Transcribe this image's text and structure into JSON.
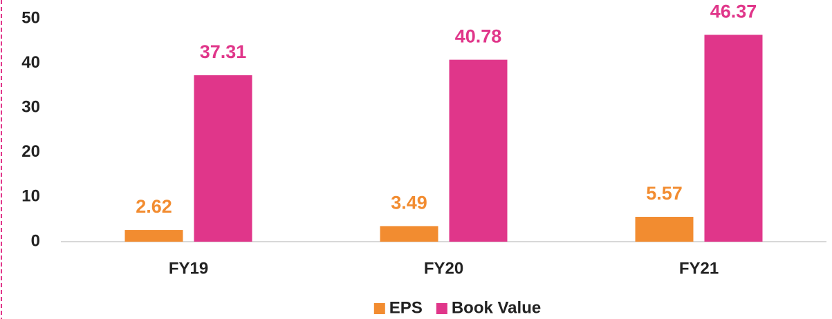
{
  "chart_data": {
    "type": "bar",
    "categories": [
      "FY19",
      "FY20",
      "FY21"
    ],
    "series": [
      {
        "name": "EPS",
        "color": "#f28c30",
        "values": [
          2.62,
          3.49,
          5.57
        ]
      },
      {
        "name": "Book Value",
        "color": "#e0368a",
        "values": [
          37.31,
          40.78,
          46.37
        ]
      }
    ],
    "ylim": [
      0,
      50
    ],
    "yticks": [
      0,
      10,
      20,
      30,
      40,
      50
    ],
    "grid": false,
    "legend": "bottom"
  }
}
